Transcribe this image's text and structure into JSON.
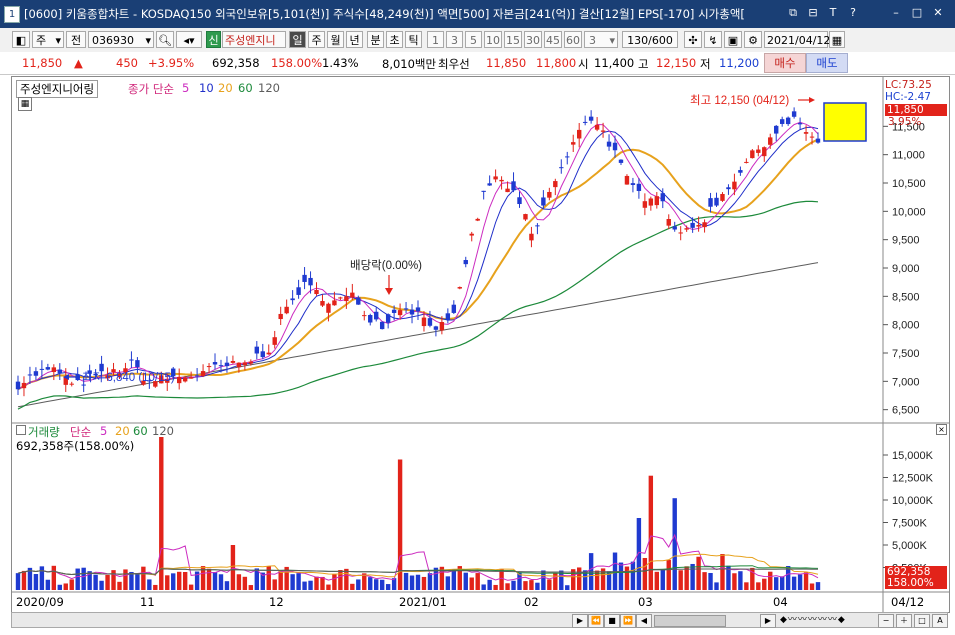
{
  "window": {
    "app_number": "1",
    "title": "[0600] 키움종합차트 - KOSDAQ150 외국인보유[5,101(천)] 주식수[48,249(천)] 액면[500] 자본금[241(억)] 결산[12월] EPS[-170] 시가총액[",
    "buttons": [
      "⧉",
      "⊟",
      "T",
      "?",
      "–",
      "□",
      "✕"
    ]
  },
  "toolbar": {
    "market": "주",
    "prefix": "전",
    "code": "036930",
    "new_badge": "신",
    "stock_name": "주성엔지니",
    "periods": [
      "일",
      "주",
      "월",
      "년",
      "분",
      "초",
      "틱"
    ],
    "active_period": "일",
    "intervals": [
      "1",
      "3",
      "5",
      "10",
      "15",
      "30",
      "45",
      "60"
    ],
    "interval_value": "3",
    "count": "130/600",
    "date": "2021/04/12"
  },
  "quote": {
    "price": "11,850",
    "change_arrow": "▲",
    "change": "450",
    "change_pct": "+3.95%",
    "volume": "692,358",
    "volume_ratio": "158.00%",
    "turnover": "1.43%",
    "trade_value": "8,010백만",
    "best_ask_label": "최우선",
    "best_ask": "11,850",
    "best_bid": "11,800",
    "open_label": "시",
    "open": "11,400",
    "high_label": "고",
    "high": "12,150",
    "low_label": "저",
    "low": "11,200",
    "buy_label": "매수",
    "sell_label": "매도"
  },
  "price_panel": {
    "stock_label": "주성엔지니어링",
    "ma_label": "종가 단순",
    "ma_periods": [
      "5",
      "10",
      "20",
      "60",
      "120"
    ],
    "ma_colors": [
      "#cc2cc0",
      "#1f2ec9",
      "#e7a21d",
      "#1d8a3b",
      "#5c5c5c"
    ],
    "lc": "LC:73.25",
    "hc": "HC:-2.47",
    "last_price_tag": "11,850",
    "last_pct_tag": "3.95%",
    "axis_labels": [
      "11,500",
      "11,000",
      "10,500",
      "10,000",
      "9,500",
      "9,000",
      "8,500",
      "8,000",
      "7,500",
      "7,000",
      "6,500"
    ],
    "high_note": "최고 12,150 (04/12)",
    "low_note": "최저 6,840 (10/15)",
    "event_note": "배당락(0.00%)"
  },
  "volume_panel": {
    "label": "거래량",
    "ma_label": "단순",
    "ma_periods": [
      "5",
      "20",
      "60",
      "120"
    ],
    "current": "692,358주(158.00%)",
    "axis_labels": [
      "15,000K",
      "12,500K",
      "10,000K",
      "7,500K",
      "5,000K",
      "2,500K"
    ],
    "last_tag_1": "692,358",
    "last_tag_2": "158.00%"
  },
  "x_axis": {
    "labels": [
      "2020/09",
      "11",
      "12",
      "2021/01",
      "02",
      "03",
      "04"
    ],
    "right_label": "04/12"
  },
  "chart_data": {
    "type": "candlestick",
    "price_range": [
      6300,
      12300
    ],
    "volume_range": [
      0,
      17000
    ],
    "candles": [],
    "ma5": [],
    "ma10": [],
    "ma20": [],
    "ma60": [],
    "ma120": [],
    "volume": [],
    "volume_ma5": [],
    "notable_points": [
      {
        "label": "최고",
        "value": 12150,
        "date": "04/12"
      },
      {
        "label": "최저",
        "value": 6840,
        "date": "10/15"
      }
    ]
  }
}
